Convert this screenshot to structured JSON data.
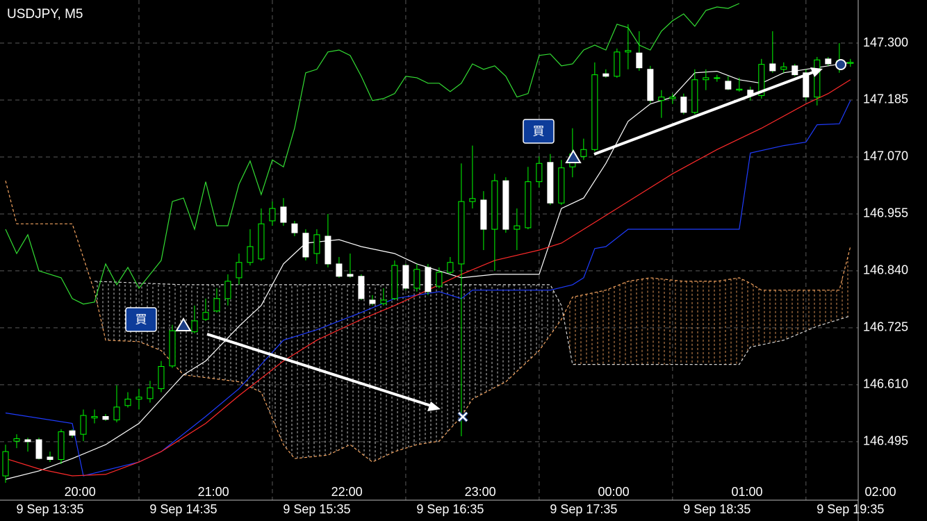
{
  "chart_data": {
    "type": "candlestick",
    "title": "USDJPY, M5",
    "open": [
      146.426,
      146.496,
      146.499,
      146.499,
      146.464,
      146.459,
      146.517,
      146.51,
      146.543,
      146.546,
      146.539,
      146.568,
      146.581,
      146.582,
      146.602,
      146.648,
      146.728,
      146.717,
      146.742,
      146.759,
      146.784,
      146.826,
      146.857,
      146.864,
      146.941,
      146.969,
      146.935,
      146.916,
      146.875,
      146.91,
      146.854,
      146.833,
      146.829,
      146.781,
      146.774,
      146.784,
      146.851,
      146.805,
      146.847,
      146.809,
      146.837,
      146.854,
      146.98,
      146.983,
      146.924,
      147.022,
      146.924,
      146.927,
      147.02,
      147.059,
      146.977,
      147.05,
      147.071,
      147.085,
      147.238,
      147.233,
      147.282,
      147.28,
      147.247,
      147.184,
      147.188,
      147.191,
      147.16,
      147.226,
      147.229,
      147.223,
      147.205,
      147.205,
      147.194,
      147.258,
      147.247,
      147.254,
      147.24,
      147.191,
      147.268,
      147.258,
      147.259
    ],
    "high": [
      146.489,
      146.51,
      146.503,
      146.503,
      146.475,
      146.52,
      146.52,
      146.56,
      146.56,
      146.551,
      146.609,
      146.595,
      146.602,
      146.618,
      146.658,
      146.731,
      146.735,
      146.77,
      146.784,
      146.805,
      146.833,
      146.875,
      146.924,
      146.966,
      146.98,
      146.987,
      146.941,
      146.924,
      146.924,
      146.955,
      146.868,
      146.875,
      146.833,
      146.791,
      146.805,
      146.861,
      146.854,
      146.854,
      146.854,
      146.847,
      146.868,
      147.057,
      147.093,
      147.001,
      147.036,
      147.029,
      146.966,
      147.05,
      147.071,
      147.076,
      147.064,
      147.128,
      147.107,
      147.261,
      147.247,
      147.289,
      147.338,
      147.324,
      147.254,
      147.205,
      147.198,
      147.198,
      147.247,
      147.247,
      147.236,
      147.233,
      147.23,
      147.212,
      147.268,
      147.324,
      147.261,
      147.258,
      147.247,
      147.272,
      147.272,
      147.3,
      147.268
    ],
    "low": [
      146.412,
      146.482,
      146.475,
      146.459,
      146.454,
      146.45,
      146.503,
      146.496,
      146.532,
      146.537,
      146.534,
      146.564,
      146.56,
      146.574,
      146.595,
      146.644,
      146.721,
      146.714,
      146.739,
      146.756,
      146.77,
      146.812,
      146.851,
      146.86,
      146.931,
      146.931,
      146.91,
      146.861,
      146.854,
      146.847,
      146.826,
      146.826,
      146.781,
      146.77,
      146.77,
      146.781,
      146.801,
      146.798,
      146.791,
      146.805,
      146.833,
      146.506,
      146.966,
      146.882,
      146.84,
      146.917,
      146.882,
      146.924,
      147.008,
      146.973,
      146.973,
      147.029,
      147.064,
      147.081,
      147.23,
      147.23,
      147.247,
      147.244,
      147.179,
      147.149,
      147.177,
      147.156,
      147.156,
      147.205,
      147.222,
      147.205,
      147.202,
      147.184,
      147.188,
      147.24,
      147.24,
      147.233,
      147.184,
      147.174,
      147.254,
      147.24,
      147.252
    ],
    "close": [
      146.475,
      146.501,
      146.495,
      146.461,
      146.459,
      146.515,
      146.508,
      146.548,
      146.546,
      146.54,
      146.565,
      146.581,
      146.585,
      146.604,
      146.647,
      146.719,
      146.731,
      146.739,
      146.756,
      146.784,
      146.819,
      146.857,
      146.889,
      146.935,
      146.966,
      146.938,
      146.917,
      146.868,
      146.913,
      146.854,
      146.829,
      146.829,
      146.784,
      146.774,
      146.781,
      146.851,
      146.805,
      146.843,
      146.798,
      146.837,
      146.857,
      146.98,
      146.986,
      146.924,
      147.022,
      146.924,
      146.931,
      147.02,
      147.057,
      146.977,
      147.048,
      147.076,
      147.085,
      147.236,
      147.233,
      147.282,
      147.285,
      147.25,
      147.184,
      147.191,
      147.191,
      147.16,
      147.226,
      147.23,
      147.23,
      147.207,
      147.207,
      147.194,
      147.257,
      147.244,
      147.252,
      147.236,
      147.191,
      147.266,
      147.258,
      147.264,
      147.261
    ],
    "up_color": "#00ff00",
    "down_color": "#ffffff",
    "lines": [
      {
        "color": "#ffffff",
        "x": [
          0,
          3,
          6,
          9,
          12,
          14,
          16,
          18,
          21,
          23,
          25,
          27,
          30,
          32,
          35,
          37,
          39,
          41,
          44,
          48,
          50,
          52,
          54,
          56,
          58,
          60,
          62,
          64,
          66,
          68,
          70,
          72,
          74,
          76
        ],
        "values": [
          146.419,
          146.436,
          146.461,
          146.489,
          146.532,
          146.581,
          146.63,
          146.658,
          146.728,
          146.77,
          146.854,
          146.896,
          146.903,
          146.889,
          146.875,
          146.854,
          146.84,
          146.826,
          146.833,
          146.833,
          146.966,
          146.987,
          147.057,
          147.142,
          147.177,
          147.191,
          147.24,
          147.243,
          147.226,
          147.219,
          147.24,
          147.247,
          147.254,
          147.261
        ]
      },
      {
        "color": "#1f3cff",
        "x": [
          0,
          6,
          7,
          12,
          14,
          18,
          21,
          25,
          28,
          32,
          35,
          39,
          41,
          42,
          49,
          51,
          52,
          53,
          54,
          56,
          66,
          67,
          70,
          72,
          73,
          75,
          76
        ],
        "values": [
          146.553,
          146.532,
          146.426,
          146.454,
          146.475,
          146.546,
          146.602,
          146.7,
          146.721,
          146.756,
          146.784,
          146.798,
          146.784,
          146.801,
          146.801,
          146.812,
          146.826,
          146.885,
          146.889,
          146.924,
          146.924,
          147.078,
          147.093,
          147.1,
          147.135,
          147.137,
          147.184
        ]
      },
      {
        "color": "#ff2a2a",
        "x": [
          0,
          3,
          6,
          9,
          12,
          14,
          18,
          21,
          25,
          28,
          32,
          35,
          39,
          41,
          44,
          48,
          50,
          53,
          56,
          60,
          64,
          68,
          72,
          74,
          76
        ],
        "values": [
          146.461,
          146.44,
          146.426,
          146.429,
          146.454,
          146.475,
          146.532,
          146.588,
          146.658,
          146.7,
          146.742,
          146.77,
          146.812,
          146.833,
          146.861,
          146.882,
          146.896,
          146.938,
          146.98,
          147.036,
          147.085,
          147.128,
          147.177,
          147.198,
          147.226
        ]
      },
      {
        "color": "#33dd33",
        "x": [
          0,
          1,
          2,
          3,
          5,
          6,
          7,
          8,
          9,
          10,
          11,
          12,
          13,
          14,
          15,
          16,
          17,
          18,
          19,
          20,
          21,
          22,
          23,
          24,
          25,
          26,
          27,
          28,
          29,
          30,
          31,
          32,
          33,
          34,
          35,
          36,
          37,
          38,
          39,
          40,
          41,
          42,
          43,
          44,
          45,
          46,
          47,
          48,
          49,
          50,
          51,
          52,
          53,
          54,
          55,
          56,
          57,
          58,
          59,
          60,
          61,
          62,
          63,
          64,
          65,
          66
        ],
        "values": [
          146.924,
          146.875,
          146.913,
          146.84,
          146.826,
          146.784,
          146.773,
          146.777,
          146.854,
          146.812,
          146.847,
          146.805,
          146.833,
          146.861,
          146.98,
          146.987,
          146.924,
          147.02,
          146.931,
          146.931,
          147.015,
          147.062,
          146.994,
          147.064,
          147.05,
          147.128,
          147.24,
          147.247,
          147.282,
          147.286,
          147.275,
          147.233,
          147.184,
          147.188,
          147.198,
          147.233,
          147.23,
          147.219,
          147.219,
          147.202,
          147.219,
          147.258,
          147.247,
          147.254,
          147.233,
          147.191,
          147.198,
          147.275,
          147.278,
          147.254,
          147.258,
          147.286,
          147.296,
          147.286,
          147.338,
          147.331,
          147.296,
          147.286,
          147.324,
          147.345,
          147.359,
          147.334,
          147.366,
          147.373,
          147.37,
          147.38
        ]
      }
    ],
    "cloud": [
      {
        "color": "#f4a460",
        "x": [
          0,
          1,
          6,
          8,
          9,
          12,
          14,
          16,
          21,
          23,
          25,
          26,
          29,
          31,
          33,
          35,
          37,
          39,
          41,
          42,
          45,
          48,
          50,
          51,
          54,
          56,
          58,
          61,
          64,
          66,
          67,
          68,
          75,
          76
        ],
        "values": [
          147.022,
          146.935,
          146.935,
          146.798,
          146.7,
          146.697,
          146.679,
          146.63,
          146.616,
          146.595,
          146.489,
          146.461,
          146.468,
          146.489,
          146.454,
          146.475,
          146.489,
          146.496,
          146.546,
          146.581,
          146.616,
          146.679,
          146.742,
          146.787,
          146.801,
          146.819,
          146.826,
          146.819,
          146.819,
          146.826,
          146.815,
          146.801,
          146.801,
          146.889
        ]
      },
      {
        "color": "#d8d8d8",
        "x": [
          8,
          16,
          49,
          50,
          51,
          66,
          67,
          70,
          73,
          76
        ],
        "values": [
          146.819,
          146.812,
          146.812,
          146.77,
          146.651,
          146.651,
          146.686,
          146.7,
          146.728,
          146.749
        ]
      }
    ],
    "annotations": [
      "買",
      "買"
    ],
    "xlim": [
      -0.5,
      76.7
    ],
    "ylim": [
      146.412,
      147.387
    ],
    "yticks": [
      {
        "value": 147.3,
        "label": "147.300"
      },
      147.185,
      {
        "value": 147.07,
        "label": "147.070"
      },
      146.955,
      {
        "value": 146.84,
        "label": "146.840"
      },
      146.725,
      {
        "value": 146.61,
        "label": "146.610"
      },
      146.495
    ],
    "xticks": [
      {
        "value": 6.7,
        "label": "20:00"
      },
      {
        "value": 18.7,
        "label": "21:00"
      },
      {
        "value": 30.7,
        "label": "22:00"
      },
      {
        "value": 42.7,
        "label": "23:00"
      },
      {
        "value": 54.7,
        "label": "00:00"
      },
      {
        "value": 66.7,
        "label": "01:00"
      },
      {
        "value": 78.7,
        "label": "02:00"
      }
    ],
    "xticks2": [
      {
        "value": 4,
        "label": "9 Sep 13:35"
      },
      {
        "value": 16,
        "label": "9 Sep 14:35"
      },
      {
        "value": 28,
        "label": "9 Sep 15:35"
      },
      {
        "value": 40,
        "label": "9 Sep 16:35"
      },
      {
        "value": 52,
        "label": "9 Sep 17:35"
      },
      {
        "value": 64,
        "label": "9 Sep 18:35"
      },
      {
        "value": 76,
        "label": "9 Sep 19:35"
      }
    ],
    "xgrid": [
      12,
      24,
      36,
      48,
      60,
      72
    ],
    "grid": true
  }
}
